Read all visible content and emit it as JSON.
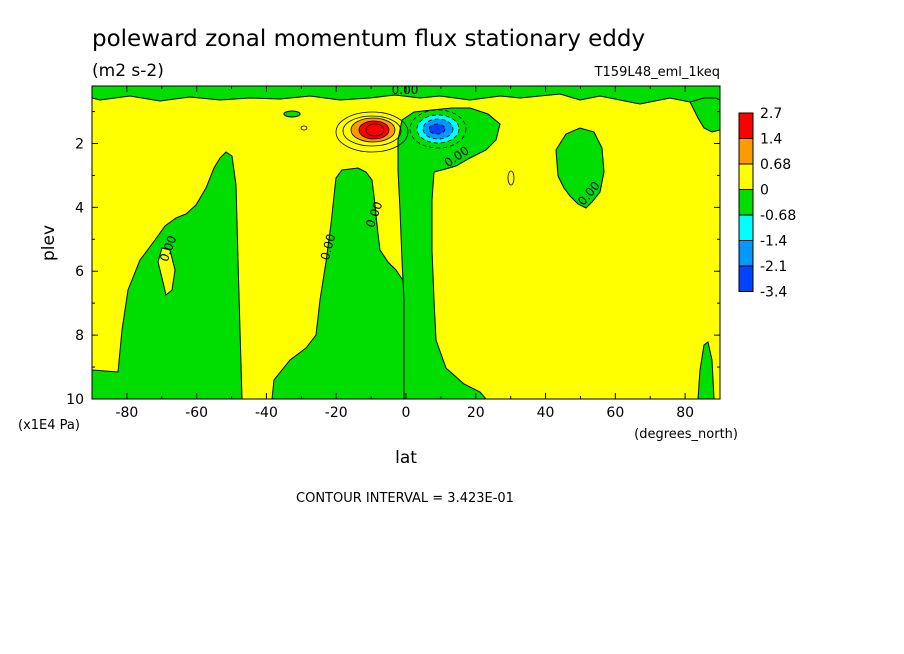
{
  "chart_data": {
    "type": "heatmap",
    "title": "poleward zonal momentum flux stationary eddy",
    "units": "(m2 s-2)",
    "dataset": "T159L48_eml_1keq",
    "xlabel": "lat",
    "x_unit": "(degrees_north)",
    "ylabel": "plev",
    "y_unit": "(x1E4 Pa)",
    "xlim": [
      -90,
      90
    ],
    "ylim": [
      10,
      0.2
    ],
    "x_ticks": [
      -80,
      -60,
      -40,
      -20,
      0,
      20,
      40,
      60,
      80
    ],
    "y_ticks": [
      2,
      4,
      6,
      8,
      10
    ],
    "contour_interval_note": "CONTOUR INTERVAL = 3.423E-01",
    "contour_line_label": "0.00",
    "colorbar": {
      "labels": [
        "2.7",
        "1.4",
        "0.68",
        "0",
        "-0.68",
        "-1.4",
        "-2.1",
        "-3.4"
      ],
      "colors": [
        "#ff0000",
        "#ff9900",
        "#ffff00",
        "#00dd00",
        "#00ffff",
        "#0099ff",
        "#0044ff"
      ]
    },
    "features": [
      {
        "type": "positive_max",
        "lat": -9,
        "plev": 1.5,
        "level": 2.7
      },
      {
        "type": "negative_min",
        "lat": 8,
        "plev": 1.45,
        "level": -3.4
      },
      {
        "type": "negative_region",
        "lat_range": [
          -77,
          -50
        ],
        "plev_range": [
          2.2,
          10
        ]
      },
      {
        "type": "negative_region",
        "lat_range": [
          -38,
          -9
        ],
        "plev_range": [
          2.8,
          10
        ]
      },
      {
        "type": "negative_region",
        "lat_range": [
          0,
          28
        ],
        "plev_range": [
          0.9,
          10
        ]
      },
      {
        "type": "negative_region",
        "lat_range": [
          44,
          57
        ],
        "plev_range": [
          1.6,
          4.0
        ]
      },
      {
        "type": "negative_region",
        "lat_range": [
          -90,
          90
        ],
        "plev_range": [
          0.2,
          0.7
        ]
      }
    ]
  }
}
